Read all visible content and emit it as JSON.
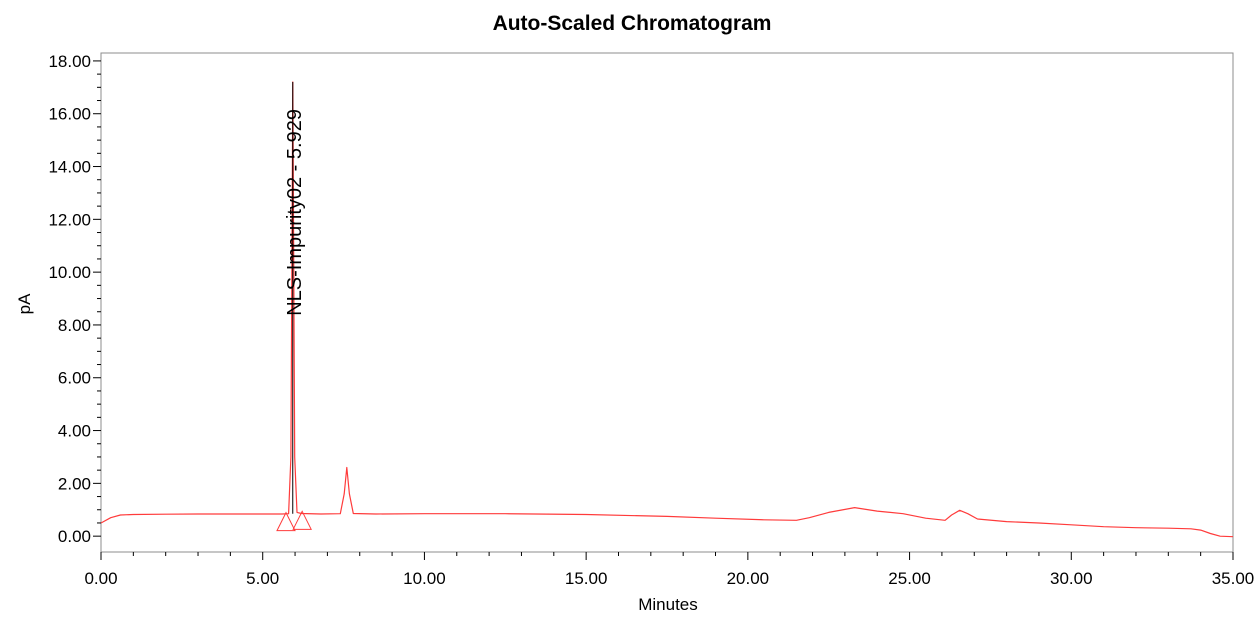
{
  "chart_data": {
    "type": "line",
    "title": "Auto-Scaled Chromatogram",
    "xlabel": "Minutes",
    "ylabel": "pA",
    "xlim": [
      0,
      35
    ],
    "ylim": [
      -0.6,
      18.3
    ],
    "grid": false,
    "x_ticks": [
      0,
      5,
      10,
      15,
      20,
      25,
      30,
      35
    ],
    "x_tick_labels": [
      "0.00",
      "5.00",
      "10.00",
      "15.00",
      "20.00",
      "25.00",
      "30.00",
      "35.00"
    ],
    "y_ticks": [
      0,
      2,
      4,
      6,
      8,
      10,
      12,
      14,
      16,
      18
    ],
    "y_tick_labels": [
      "0.00",
      "2.00",
      "4.00",
      "6.00",
      "8.00",
      "10.00",
      "12.00",
      "14.00",
      "16.00",
      "18.00"
    ],
    "series": [
      {
        "color": "#ff3b3b",
        "x": [
          0,
          0.3,
          0.6,
          1.0,
          2.0,
          3.0,
          4.0,
          5.0,
          5.6,
          5.8,
          5.87,
          5.929,
          5.99,
          6.06,
          6.2,
          6.8,
          7.4,
          7.52,
          7.6,
          7.68,
          7.8,
          8.5,
          10.0,
          12.5,
          15.0,
          17.5,
          19.0,
          20.5,
          21.5,
          21.9,
          22.5,
          23.3,
          24.0,
          24.8,
          25.5,
          26.1,
          26.3,
          26.55,
          26.8,
          27.1,
          28.0,
          29.0,
          30.0,
          31.0,
          32.0,
          33.0,
          33.7,
          34.0,
          34.3,
          34.6,
          35.0
        ],
        "values": [
          0.5,
          0.7,
          0.8,
          0.82,
          0.83,
          0.84,
          0.84,
          0.84,
          0.84,
          0.85,
          3.0,
          17.2,
          3.0,
          0.9,
          0.86,
          0.84,
          0.85,
          1.6,
          2.6,
          1.6,
          0.86,
          0.84,
          0.85,
          0.85,
          0.82,
          0.75,
          0.68,
          0.62,
          0.6,
          0.7,
          0.9,
          1.08,
          0.95,
          0.85,
          0.68,
          0.6,
          0.8,
          0.98,
          0.85,
          0.65,
          0.55,
          0.5,
          0.43,
          0.36,
          0.32,
          0.3,
          0.28,
          0.23,
          0.1,
          0.0,
          -0.02
        ]
      }
    ],
    "annotations": [
      {
        "text": "NLS-Impurity02 - 5.929",
        "x": 5.929,
        "y": 17.2,
        "orientation": "vertical"
      }
    ],
    "integration_markers": [
      {
        "shape": "triangle",
        "x": 5.72,
        "y": 0.55
      },
      {
        "shape": "triangle",
        "x": 6.22,
        "y": 0.6
      }
    ]
  }
}
